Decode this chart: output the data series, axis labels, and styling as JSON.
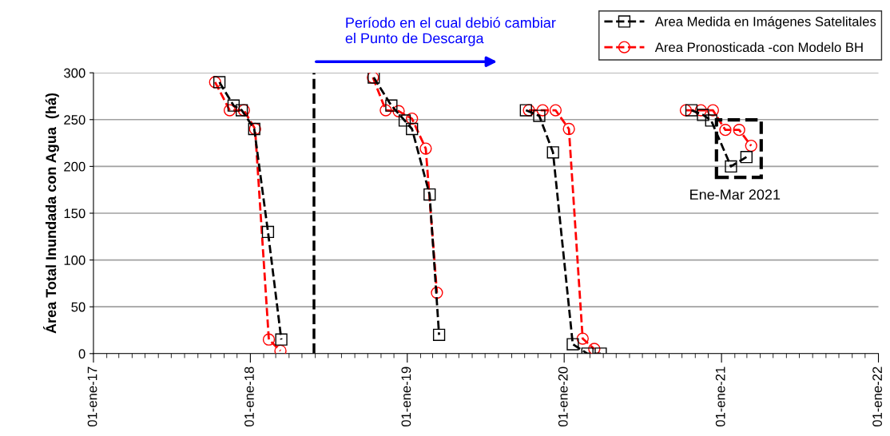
{
  "chart_data": {
    "type": "line",
    "ylabel": "Área Total Inundada con Agua  (há)",
    "series": [
      {
        "name": "Area Medida en Imágenes Satelitales",
        "color": "#000000",
        "marker": "square",
        "line_style": "dashed",
        "x": [
          "2017-10-21",
          "2017-11-23",
          "2017-12-12",
          "2018-01-10",
          "2018-02-11",
          "2018-03-14",
          null,
          "2018-10-15",
          "2018-11-25",
          "2018-12-26",
          "2019-01-12",
          "2019-02-22",
          "2019-03-16",
          null,
          "2019-10-04",
          "2019-11-04",
          "2019-12-06",
          "2020-01-21",
          "2020-02-24",
          "2020-03-26",
          null,
          "2020-10-23",
          "2020-11-19",
          "2020-12-08",
          "2021-01-23",
          "2021-02-28"
        ],
        "values": [
          290,
          265,
          260,
          240,
          130,
          15,
          null,
          295,
          265,
          249,
          240,
          170,
          20,
          null,
          260,
          254,
          215,
          10,
          0,
          0,
          null,
          260,
          255,
          249,
          200,
          210
        ]
      },
      {
        "name": "Area Pronosticada -con Modelo BH",
        "color": "#ff0000",
        "marker": "circle",
        "line_style": "dashed",
        "x": [
          "2017-10-11",
          "2017-11-14",
          "2017-12-17",
          "2018-01-12",
          "2018-02-13",
          "2018-03-12",
          null,
          "2018-10-13",
          "2018-11-12",
          "2018-12-12",
          "2019-01-12",
          "2019-02-13",
          "2019-03-11",
          null,
          "2019-10-11",
          "2019-11-12",
          "2019-12-12",
          "2020-01-12",
          "2020-02-13",
          "2020-03-11",
          null,
          "2020-10-10",
          "2020-11-14",
          "2020-12-12",
          "2021-01-10",
          "2021-02-11",
          "2021-03-11"
        ],
        "values": [
          290,
          260,
          260,
          240,
          15,
          3,
          null,
          295,
          260,
          259,
          251,
          219,
          65,
          null,
          260,
          260,
          260,
          240,
          16,
          5,
          null,
          260,
          260,
          260,
          239,
          239,
          222
        ]
      }
    ],
    "xlim": [
      "2017-01-01",
      "2022-01-01"
    ],
    "xticks": [
      {
        "value": "2017-01-01",
        "label": "01-ene-17"
      },
      {
        "value": "2018-01-01",
        "label": "01-ene-18"
      },
      {
        "value": "2019-01-01",
        "label": "01-ene-19"
      },
      {
        "value": "2020-01-01",
        "label": "01-ene-20"
      },
      {
        "value": "2021-01-01",
        "label": "01-ene-21"
      },
      {
        "value": "2022-01-01",
        "label": "01-ene-22"
      }
    ],
    "ylim": [
      0,
      300
    ],
    "yticks": [
      0,
      50,
      100,
      150,
      200,
      250,
      300
    ],
    "grid": "y",
    "legend": "top right",
    "ref_lines": [
      {
        "axis": "x",
        "value": "2018-05-29",
        "color": "#000000",
        "line_style": "dashed"
      }
    ],
    "annotations": [
      "Período en el cual debió cambiar\nel Punto de Descarga",
      {
        "text": "Ene-Mar 2021",
        "x": "2021-02-01",
        "y": 190
      }
    ]
  }
}
